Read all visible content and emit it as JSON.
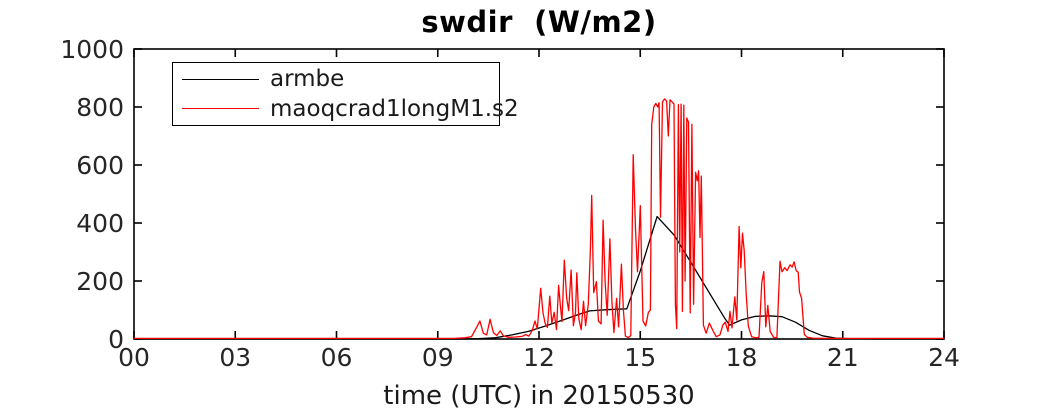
{
  "figure": {
    "background": "#ffffff"
  },
  "chart_data": {
    "type": "line",
    "title": "swdir  (W/m2)",
    "xlabel": "time (UTC) in 20150530",
    "ylabel": "",
    "xlim": [
      0,
      24
    ],
    "ylim": [
      0,
      1000
    ],
    "x_tick_values": [
      0,
      3,
      6,
      9,
      12,
      15,
      18,
      21,
      24
    ],
    "x_tick_labels": [
      "00",
      "03",
      "06",
      "09",
      "12",
      "15",
      "18",
      "21",
      "24"
    ],
    "y_tick_values": [
      0,
      200,
      400,
      600,
      800,
      1000
    ],
    "y_tick_labels": [
      "0",
      "200",
      "400",
      "600",
      "800",
      "1000"
    ],
    "grid": false,
    "axis_color": "#000000",
    "tick_label_color": "#262626",
    "legend": {
      "position": "upper-left-inside",
      "border_color": "#000000",
      "background": "#ffffff"
    },
    "series": [
      {
        "name": "armbe",
        "color": "#000000",
        "points": [
          [
            0,
            0
          ],
          [
            1,
            0
          ],
          [
            2,
            0
          ],
          [
            3,
            0
          ],
          [
            4,
            0
          ],
          [
            5,
            0
          ],
          [
            6,
            0
          ],
          [
            7,
            0
          ],
          [
            8,
            0
          ],
          [
            9,
            0
          ],
          [
            9.7,
            0
          ],
          [
            10.2,
            1
          ],
          [
            10.7,
            4
          ],
          [
            11.2,
            14
          ],
          [
            11.7,
            27
          ],
          [
            12.2,
            45
          ],
          [
            12.7,
            65
          ],
          [
            13.2,
            86
          ],
          [
            13.5,
            97
          ],
          [
            14.0,
            101
          ],
          [
            14.6,
            104
          ],
          [
            15.0,
            235
          ],
          [
            15.5,
            422
          ],
          [
            16.0,
            359
          ],
          [
            16.5,
            264
          ],
          [
            17.0,
            168
          ],
          [
            17.5,
            72
          ],
          [
            17.65,
            48
          ],
          [
            18.0,
            66
          ],
          [
            18.4,
            78
          ],
          [
            18.8,
            80
          ],
          [
            19.2,
            77
          ],
          [
            19.6,
            58
          ],
          [
            20.0,
            30
          ],
          [
            20.4,
            11
          ],
          [
            20.8,
            3
          ],
          [
            21.2,
            1
          ],
          [
            22,
            0
          ],
          [
            23,
            0
          ],
          [
            24,
            0
          ]
        ]
      },
      {
        "name": "maoqcrad1longM1.s2",
        "color": "#ff0000",
        "points": [
          [
            0,
            2
          ],
          [
            0.5,
            2
          ],
          [
            1,
            2
          ],
          [
            1.5,
            2
          ],
          [
            2,
            2
          ],
          [
            2.5,
            2
          ],
          [
            3,
            2
          ],
          [
            3.5,
            2
          ],
          [
            4,
            2
          ],
          [
            4.5,
            2
          ],
          [
            5,
            2
          ],
          [
            5.5,
            2
          ],
          [
            6,
            2
          ],
          [
            6.5,
            2
          ],
          [
            7,
            2
          ],
          [
            7.5,
            2
          ],
          [
            8,
            2
          ],
          [
            8.5,
            2
          ],
          [
            9,
            2
          ],
          [
            9.5,
            2
          ],
          [
            9.8,
            4
          ],
          [
            10.0,
            8
          ],
          [
            10.15,
            40
          ],
          [
            10.25,
            62
          ],
          [
            10.35,
            20
          ],
          [
            10.45,
            14
          ],
          [
            10.55,
            68
          ],
          [
            10.65,
            22
          ],
          [
            10.75,
            12
          ],
          [
            10.85,
            28
          ],
          [
            10.95,
            10
          ],
          [
            11.1,
            6
          ],
          [
            11.3,
            7
          ],
          [
            11.5,
            9
          ],
          [
            11.6,
            15
          ],
          [
            11.7,
            10
          ],
          [
            11.8,
            30
          ],
          [
            11.88,
            62
          ],
          [
            11.95,
            35
          ],
          [
            12.05,
            175
          ],
          [
            12.12,
            90
          ],
          [
            12.18,
            55
          ],
          [
            12.25,
            40
          ],
          [
            12.32,
            148
          ],
          [
            12.38,
            55
          ],
          [
            12.45,
            92
          ],
          [
            12.52,
            32
          ],
          [
            12.58,
            185
          ],
          [
            12.63,
            118
          ],
          [
            12.68,
            60
          ],
          [
            12.75,
            272
          ],
          [
            12.82,
            140
          ],
          [
            12.88,
            98
          ],
          [
            12.95,
            238
          ],
          [
            13.02,
            46
          ],
          [
            13.08,
            92
          ],
          [
            13.12,
            228
          ],
          [
            13.18,
            70
          ],
          [
            13.25,
            32
          ],
          [
            13.32,
            130
          ],
          [
            13.38,
            46
          ],
          [
            13.46,
            120
          ],
          [
            13.52,
            300
          ],
          [
            13.56,
            495
          ],
          [
            13.62,
            160
          ],
          [
            13.7,
            198
          ],
          [
            13.76,
            62
          ],
          [
            13.84,
            52
          ],
          [
            13.9,
            410
          ],
          [
            13.96,
            200
          ],
          [
            14.02,
            82
          ],
          [
            14.1,
            345
          ],
          [
            14.16,
            130
          ],
          [
            14.22,
            22
          ],
          [
            14.3,
            140
          ],
          [
            14.36,
            42
          ],
          [
            14.44,
            258
          ],
          [
            14.5,
            100
          ],
          [
            14.56,
            10
          ],
          [
            14.65,
            5
          ],
          [
            14.72,
            12
          ],
          [
            14.79,
            635
          ],
          [
            14.86,
            380
          ],
          [
            14.92,
            232
          ],
          [
            15.0,
            460
          ],
          [
            15.08,
            62
          ],
          [
            15.16,
            45
          ],
          [
            15.24,
            92
          ],
          [
            15.3,
            100
          ],
          [
            15.34,
            740
          ],
          [
            15.4,
            800
          ],
          [
            15.46,
            812
          ],
          [
            15.52,
            800
          ],
          [
            15.56,
            815
          ],
          [
            15.6,
            420
          ],
          [
            15.66,
            818
          ],
          [
            15.72,
            828
          ],
          [
            15.78,
            820
          ],
          [
            15.83,
            700
          ],
          [
            15.88,
            825
          ],
          [
            15.94,
            818
          ],
          [
            16.0,
            810
          ],
          [
            16.04,
            120
          ],
          [
            16.08,
            36
          ],
          [
            16.13,
            808
          ],
          [
            16.17,
            300
          ],
          [
            16.21,
            810
          ],
          [
            16.25,
            95
          ],
          [
            16.29,
            806
          ],
          [
            16.33,
            200
          ],
          [
            16.38,
            762
          ],
          [
            16.43,
            748
          ],
          [
            16.48,
            90
          ],
          [
            16.53,
            740
          ],
          [
            16.58,
            120
          ],
          [
            16.64,
            575
          ],
          [
            16.69,
            545
          ],
          [
            16.73,
            580
          ],
          [
            16.77,
            350
          ],
          [
            16.81,
            562
          ],
          [
            16.87,
            48
          ],
          [
            16.95,
            20
          ],
          [
            17.05,
            55
          ],
          [
            17.15,
            30
          ],
          [
            17.25,
            8
          ],
          [
            17.36,
            14
          ],
          [
            17.45,
            48
          ],
          [
            17.52,
            58
          ],
          [
            17.6,
            26
          ],
          [
            17.66,
            95
          ],
          [
            17.72,
            38
          ],
          [
            17.8,
            145
          ],
          [
            17.86,
            65
          ],
          [
            17.93,
            388
          ],
          [
            17.98,
            245
          ],
          [
            18.03,
            365
          ],
          [
            18.08,
            305
          ],
          [
            18.14,
            155
          ],
          [
            18.2,
            45
          ],
          [
            18.3,
            8
          ],
          [
            18.42,
            4
          ],
          [
            18.52,
            6
          ],
          [
            18.6,
            195
          ],
          [
            18.66,
            232
          ],
          [
            18.72,
            42
          ],
          [
            18.78,
            116
          ],
          [
            18.85,
            26
          ],
          [
            18.95,
            6
          ],
          [
            19.05,
            4
          ],
          [
            19.14,
            268
          ],
          [
            19.2,
            232
          ],
          [
            19.28,
            246
          ],
          [
            19.35,
            236
          ],
          [
            19.44,
            256
          ],
          [
            19.5,
            248
          ],
          [
            19.56,
            266
          ],
          [
            19.62,
            236
          ],
          [
            19.68,
            230
          ],
          [
            19.72,
            162
          ],
          [
            19.78,
            140
          ],
          [
            19.86,
            16
          ],
          [
            19.95,
            6
          ],
          [
            20.1,
            3
          ],
          [
            20.5,
            2
          ],
          [
            21,
            2
          ],
          [
            21.5,
            2
          ],
          [
            22,
            2
          ],
          [
            22.5,
            2
          ],
          [
            23,
            2
          ],
          [
            23.5,
            2
          ],
          [
            24,
            2
          ]
        ]
      }
    ]
  }
}
